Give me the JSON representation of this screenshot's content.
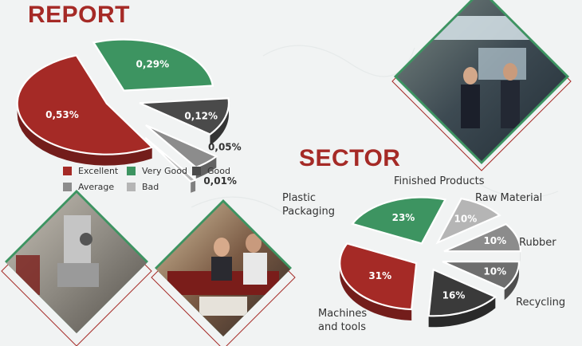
{
  "report": {
    "title": "REPORT",
    "chart_data": {
      "type": "pie",
      "categories": [
        "Excellent",
        "Very Good",
        "Good",
        "Average",
        "Bad"
      ],
      "values": [
        0.53,
        0.29,
        0.12,
        0.05,
        0.01
      ],
      "labels": [
        "0,53%",
        "0,29%",
        "0,12%",
        "0,05%",
        "0,01%"
      ],
      "colors": [
        "#a52a26",
        "#3d9461",
        "#4a4a4a",
        "#8c8c8c",
        "#b5b5b5"
      ],
      "legend_position": "bottom"
    }
  },
  "sector": {
    "title": "SECTOR",
    "chart_data": {
      "type": "pie",
      "categories": [
        "Machines and tools",
        "Recycling",
        "Rubber",
        "Raw Material",
        "Finished Products",
        "Plastic Packaging"
      ],
      "display_categories": [
        [
          "Machines",
          "and tools"
        ],
        [
          "Recycling"
        ],
        [
          "Rubber"
        ],
        [
          "Raw Material"
        ],
        [
          "Finished Products"
        ],
        [
          "Plastic",
          "Packaging"
        ]
      ],
      "values": [
        31,
        23,
        10,
        10,
        10,
        16
      ],
      "labels": [
        "31%",
        "23%",
        "10%",
        "10%",
        "10%",
        "16%"
      ],
      "colors": [
        "#a52a26",
        "#3d9461",
        "#b5b5b5",
        "#8c8c8c",
        "#6e6e6e",
        "#3a3a3a"
      ],
      "legend_position": "none"
    }
  },
  "photos": [
    {
      "name": "exhibition-booth-photo"
    },
    {
      "name": "machinery-photo"
    },
    {
      "name": "meeting-table-photo"
    }
  ],
  "colors": {
    "accent_red": "#a52a26",
    "accent_green": "#3d9461",
    "background": "#f1f3f3"
  }
}
